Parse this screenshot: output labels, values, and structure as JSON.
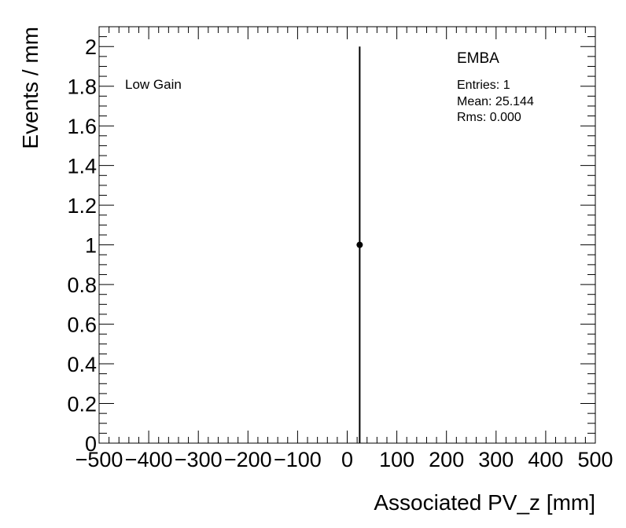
{
  "chart_data": {
    "type": "scatter",
    "title": "",
    "xlabel": "Associated PV_z [mm]",
    "ylabel": "Events / mm",
    "xlim": [
      -500,
      500
    ],
    "ylim": [
      0,
      2.1
    ],
    "x_ticks": [
      -500,
      -400,
      -300,
      -200,
      -100,
      0,
      100,
      200,
      300,
      400,
      500
    ],
    "x_tick_labels": [
      "−500",
      "−400",
      "−300",
      "−200",
      "−100",
      "0",
      "100",
      "200",
      "300",
      "400",
      "500"
    ],
    "y_ticks": [
      0,
      0.2,
      0.4,
      0.6,
      0.8,
      1,
      1.2,
      1.4,
      1.6,
      1.8,
      2
    ],
    "y_tick_labels": [
      "0",
      "0.2",
      "0.4",
      "0.6",
      "0.8",
      "1",
      "1.2",
      "1.4",
      "1.6",
      "1.8",
      "2"
    ],
    "series": [
      {
        "values": [
          {
            "x": 25.144,
            "y": 1,
            "yerr": 1
          }
        ]
      }
    ],
    "grid": false,
    "annotations": {
      "label": "Low Gain",
      "stats_title": "EMBA",
      "entries": "Entries: 1",
      "mean": "Mean: 25.144",
      "rms": "Rms: 0.000"
    }
  }
}
